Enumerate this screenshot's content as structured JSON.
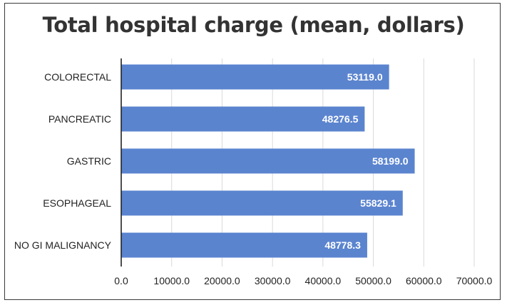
{
  "colors": {
    "bar": "#5b84cf",
    "grid": "#d9d9d9",
    "axis": "#222222",
    "data_label": "#ffffff"
  },
  "chart_data": {
    "type": "bar",
    "orientation": "horizontal",
    "title": "Total hospital charge (mean, dollars)",
    "xlabel": "",
    "ylabel": "",
    "categories": [
      "COLORECTAL",
      "PANCREATIC",
      "GASTRIC",
      "ESOPHAGEAL",
      "NO GI MALIGNANCY"
    ],
    "values": [
      53119.0,
      48276.5,
      58199.0,
      55829.1,
      48778.3
    ],
    "value_labels": [
      "53119.0",
      "48276.5",
      "58199.0",
      "55829.1",
      "48778.3"
    ],
    "xlim": [
      0,
      70000
    ],
    "xticks": [
      0,
      10000,
      20000,
      30000,
      40000,
      50000,
      60000,
      70000
    ],
    "xtick_labels": [
      "0.0",
      "10000.0",
      "20000.0",
      "30000.0",
      "40000.0",
      "50000.0",
      "60000.0",
      "70000.0"
    ],
    "grid": "vertical",
    "legend": "none"
  }
}
